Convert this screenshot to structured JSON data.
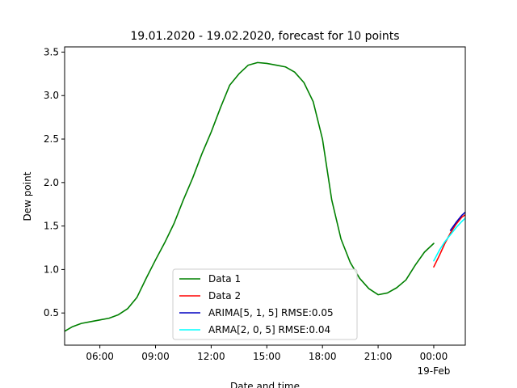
{
  "chart_data": {
    "type": "line",
    "title": "19.01.2020 - 19.02.2020, forecast for 10 points",
    "xlabel": "Date and time",
    "ylabel": "Dew point",
    "x_ticks": [
      {
        "hour": 6,
        "label": "06:00",
        "sublabel": ""
      },
      {
        "hour": 9,
        "label": "09:00",
        "sublabel": ""
      },
      {
        "hour": 12,
        "label": "12:00",
        "sublabel": ""
      },
      {
        "hour": 15,
        "label": "15:00",
        "sublabel": ""
      },
      {
        "hour": 18,
        "label": "18:00",
        "sublabel": ""
      },
      {
        "hour": 21,
        "label": "21:00",
        "sublabel": ""
      },
      {
        "hour": 24,
        "label": "00:00",
        "sublabel": "19-Feb"
      }
    ],
    "y_ticks": [
      0.5,
      1.0,
      1.5,
      2.0,
      2.5,
      3.0,
      3.5
    ],
    "xlim": [
      4.1,
      25.7
    ],
    "ylim": [
      0.13,
      3.56
    ],
    "legend_position": "lower center",
    "series": [
      {
        "name": "Data 1",
        "color": "#008000",
        "x": [
          4.1,
          4.5,
          5.0,
          5.5,
          6.0,
          6.5,
          7.0,
          7.5,
          8.0,
          8.5,
          9.0,
          9.5,
          10.0,
          10.5,
          11.0,
          11.5,
          12.0,
          12.5,
          13.0,
          13.5,
          14.0,
          14.5,
          15.0,
          15.5,
          16.0,
          16.5,
          17.0,
          17.5,
          18.0,
          18.5,
          19.0,
          19.5,
          20.0,
          20.5,
          21.0,
          21.5,
          22.0,
          22.5,
          23.0,
          23.5,
          24.0
        ],
        "y": [
          0.29,
          0.34,
          0.38,
          0.4,
          0.42,
          0.44,
          0.48,
          0.55,
          0.68,
          0.9,
          1.11,
          1.31,
          1.53,
          1.8,
          2.05,
          2.33,
          2.58,
          2.86,
          3.12,
          3.25,
          3.35,
          3.38,
          3.37,
          3.35,
          3.33,
          3.27,
          3.15,
          2.93,
          2.5,
          1.8,
          1.35,
          1.08,
          0.9,
          0.78,
          0.71,
          0.73,
          0.79,
          0.88,
          1.05,
          1.2,
          1.3
        ]
      },
      {
        "name": "Data 2",
        "color": "#ff0000",
        "x": [
          24.0,
          24.3,
          24.6,
          24.9,
          25.2,
          25.5,
          25.7
        ],
        "y": [
          1.03,
          1.16,
          1.3,
          1.42,
          1.52,
          1.6,
          1.63
        ]
      },
      {
        "name": "ARIMA[5, 1, 5] RMSE:0.05",
        "color": "#0000c0",
        "x": [
          24.9,
          25.2,
          25.5,
          25.7
        ],
        "y": [
          1.45,
          1.54,
          1.62,
          1.66
        ]
      },
      {
        "name": "ARMA[2, 0, 5] RMSE:0.04",
        "color": "#00ffff",
        "x": [
          24.0,
          24.3,
          24.6,
          24.9,
          25.2,
          25.5,
          25.7
        ],
        "y": [
          1.1,
          1.22,
          1.32,
          1.4,
          1.48,
          1.55,
          1.59
        ]
      }
    ]
  }
}
